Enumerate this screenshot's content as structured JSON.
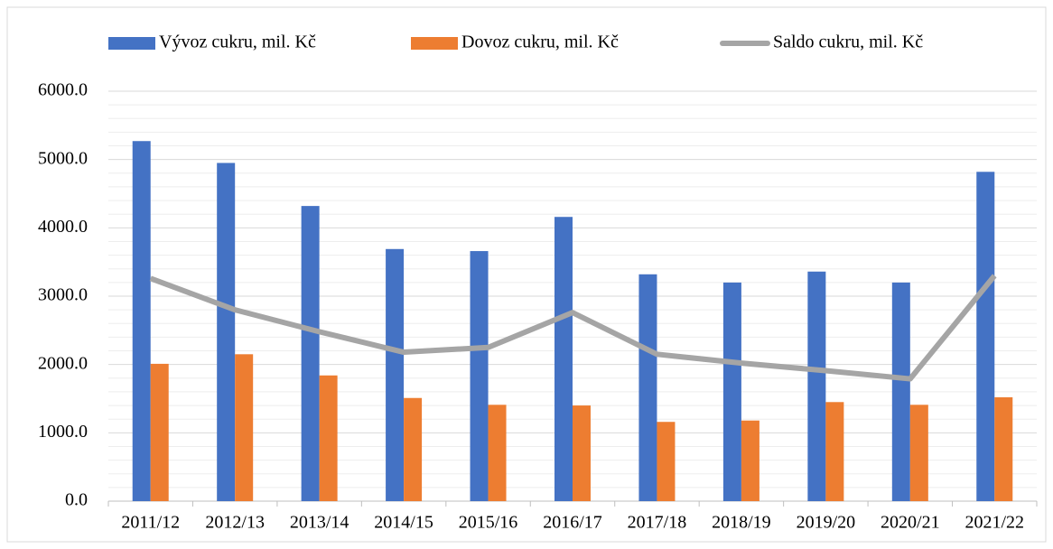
{
  "chart_data": {
    "type": "bar_line",
    "categories": [
      "2011/12",
      "2012/13",
      "2013/14",
      "2014/15",
      "2015/16",
      "2016/17",
      "2017/18",
      "2018/19",
      "2019/20",
      "2020/21",
      "2021/22"
    ],
    "series": [
      {
        "name": "Vývoz cukru, mil. Kč",
        "color": "#4472c4",
        "type": "bar",
        "values": [
          5270,
          4950,
          4320,
          3690,
          3660,
          4160,
          3320,
          3200,
          3360,
          3200,
          4820
        ]
      },
      {
        "name": "Dovoz cukru, mil. Kč",
        "color": "#ed7d31",
        "type": "bar",
        "values": [
          2010,
          2150,
          1840,
          1510,
          1410,
          1400,
          1160,
          1180,
          1450,
          1410,
          1520
        ]
      },
      {
        "name": "Saldo cukru, mil. Kč",
        "color": "#a5a5a5",
        "type": "line",
        "values": [
          3260,
          2800,
          2480,
          2180,
          2250,
          2760,
          2150,
          2020,
          1910,
          1790,
          3300
        ]
      }
    ],
    "ylim": [
      0,
      6000
    ],
    "yticks": [
      {
        "value": 0,
        "label": "0.0"
      },
      {
        "value": 1000,
        "label": "1000.0"
      },
      {
        "value": 2000,
        "label": "2000.0"
      },
      {
        "value": 3000,
        "label": "3000.0"
      },
      {
        "value": 4000,
        "label": "4000.0"
      },
      {
        "value": 5000,
        "label": "5000.0"
      },
      {
        "value": 6000,
        "label": "6000.0"
      }
    ],
    "minor_yticks": [
      200,
      400,
      600,
      800,
      1200,
      1400,
      1600,
      1800,
      2200,
      2400,
      2600,
      2800,
      3200,
      3400,
      3600,
      3800,
      4200,
      4400,
      4600,
      4800,
      5200,
      5400,
      5600,
      5800
    ],
    "grid": true,
    "legend": "top"
  }
}
